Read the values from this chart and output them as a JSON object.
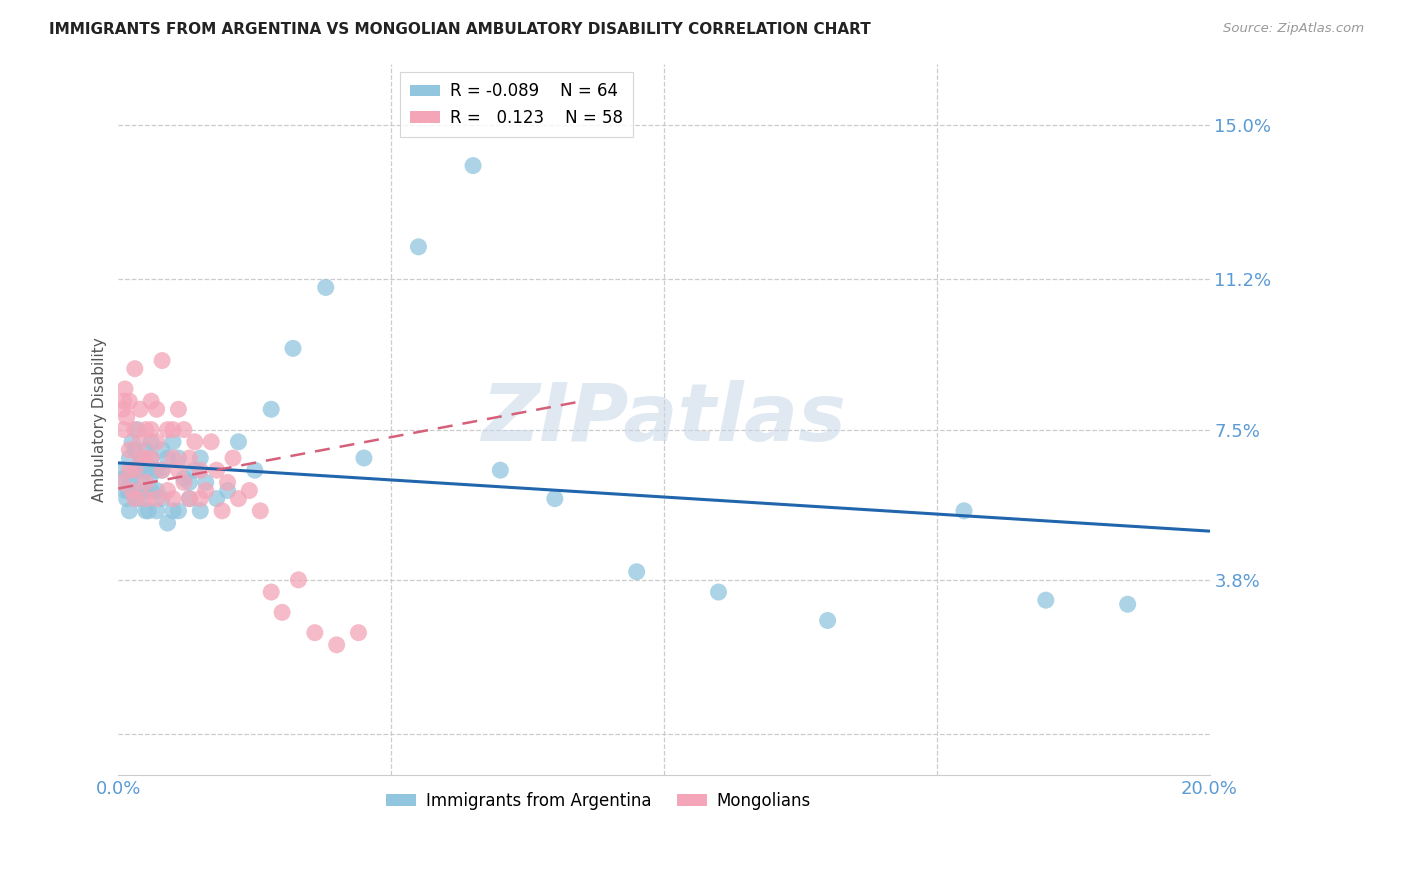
{
  "title": "IMMIGRANTS FROM ARGENTINA VS MONGOLIAN AMBULATORY DISABILITY CORRELATION CHART",
  "source": "Source: ZipAtlas.com",
  "ylabel": "Ambulatory Disability",
  "xlim": [
    0.0,
    0.2
  ],
  "ylim": [
    -0.01,
    0.165
  ],
  "legend_blue_r": "-0.089",
  "legend_blue_n": "64",
  "legend_pink_r": "0.123",
  "legend_pink_n": "58",
  "watermark_text": "ZIPatlas",
  "blue_color": "#92c5de",
  "pink_color": "#f4a5b8",
  "blue_line_color": "#2166ac",
  "pink_line_color": "#d6607a",
  "axis_label_color": "#5b9bd5",
  "grid_color": "#cccccc",
  "ytick_vals": [
    0.0,
    0.038,
    0.075,
    0.112,
    0.15
  ],
  "ytick_labels": [
    "",
    "3.8%",
    "7.5%",
    "11.2%",
    "15.0%"
  ],
  "argentina_x": [
    0.0008,
    0.001,
    0.0012,
    0.0015,
    0.0018,
    0.002,
    0.002,
    0.0022,
    0.0025,
    0.003,
    0.003,
    0.003,
    0.0032,
    0.0035,
    0.004,
    0.004,
    0.004,
    0.0042,
    0.005,
    0.005,
    0.005,
    0.005,
    0.0055,
    0.006,
    0.006,
    0.006,
    0.006,
    0.007,
    0.007,
    0.007,
    0.008,
    0.008,
    0.008,
    0.009,
    0.009,
    0.01,
    0.01,
    0.011,
    0.011,
    0.012,
    0.013,
    0.013,
    0.014,
    0.015,
    0.015,
    0.016,
    0.018,
    0.02,
    0.022,
    0.025,
    0.028,
    0.032,
    0.038,
    0.045,
    0.055,
    0.065,
    0.07,
    0.08,
    0.095,
    0.11,
    0.13,
    0.155,
    0.17,
    0.185
  ],
  "argentina_y": [
    0.065,
    0.063,
    0.06,
    0.058,
    0.06,
    0.068,
    0.055,
    0.062,
    0.072,
    0.06,
    0.065,
    0.07,
    0.058,
    0.075,
    0.065,
    0.058,
    0.063,
    0.068,
    0.055,
    0.06,
    0.065,
    0.07,
    0.055,
    0.068,
    0.06,
    0.064,
    0.072,
    0.055,
    0.06,
    0.065,
    0.058,
    0.065,
    0.07,
    0.052,
    0.068,
    0.055,
    0.072,
    0.055,
    0.068,
    0.063,
    0.062,
    0.058,
    0.065,
    0.055,
    0.068,
    0.062,
    0.058,
    0.06,
    0.072,
    0.065,
    0.08,
    0.095,
    0.11,
    0.068,
    0.12,
    0.14,
    0.065,
    0.058,
    0.04,
    0.035,
    0.028,
    0.055,
    0.033,
    0.032
  ],
  "mongolian_x": [
    0.0005,
    0.0008,
    0.001,
    0.001,
    0.0012,
    0.0015,
    0.002,
    0.002,
    0.002,
    0.0025,
    0.003,
    0.003,
    0.003,
    0.003,
    0.004,
    0.004,
    0.004,
    0.005,
    0.005,
    0.005,
    0.005,
    0.006,
    0.006,
    0.006,
    0.007,
    0.007,
    0.007,
    0.008,
    0.008,
    0.009,
    0.009,
    0.01,
    0.01,
    0.01,
    0.011,
    0.011,
    0.012,
    0.012,
    0.013,
    0.013,
    0.014,
    0.015,
    0.015,
    0.016,
    0.017,
    0.018,
    0.019,
    0.02,
    0.021,
    0.022,
    0.024,
    0.026,
    0.028,
    0.03,
    0.033,
    0.036,
    0.04,
    0.044
  ],
  "mongolian_y": [
    0.062,
    0.08,
    0.082,
    0.075,
    0.085,
    0.078,
    0.07,
    0.065,
    0.082,
    0.06,
    0.09,
    0.075,
    0.065,
    0.058,
    0.08,
    0.072,
    0.068,
    0.075,
    0.068,
    0.062,
    0.058,
    0.082,
    0.075,
    0.068,
    0.08,
    0.072,
    0.058,
    0.092,
    0.065,
    0.075,
    0.06,
    0.068,
    0.058,
    0.075,
    0.08,
    0.065,
    0.062,
    0.075,
    0.068,
    0.058,
    0.072,
    0.065,
    0.058,
    0.06,
    0.072,
    0.065,
    0.055,
    0.062,
    0.068,
    0.058,
    0.06,
    0.055,
    0.035,
    0.03,
    0.038,
    0.025,
    0.022,
    0.025
  ],
  "blue_line_x0": 0.0,
  "blue_line_x1": 0.2,
  "blue_line_y0": 0.0668,
  "blue_line_y1": 0.05,
  "pink_line_x0": 0.0,
  "pink_line_x1": 0.085,
  "pink_line_y0": 0.0605,
  "pink_line_y1": 0.082
}
